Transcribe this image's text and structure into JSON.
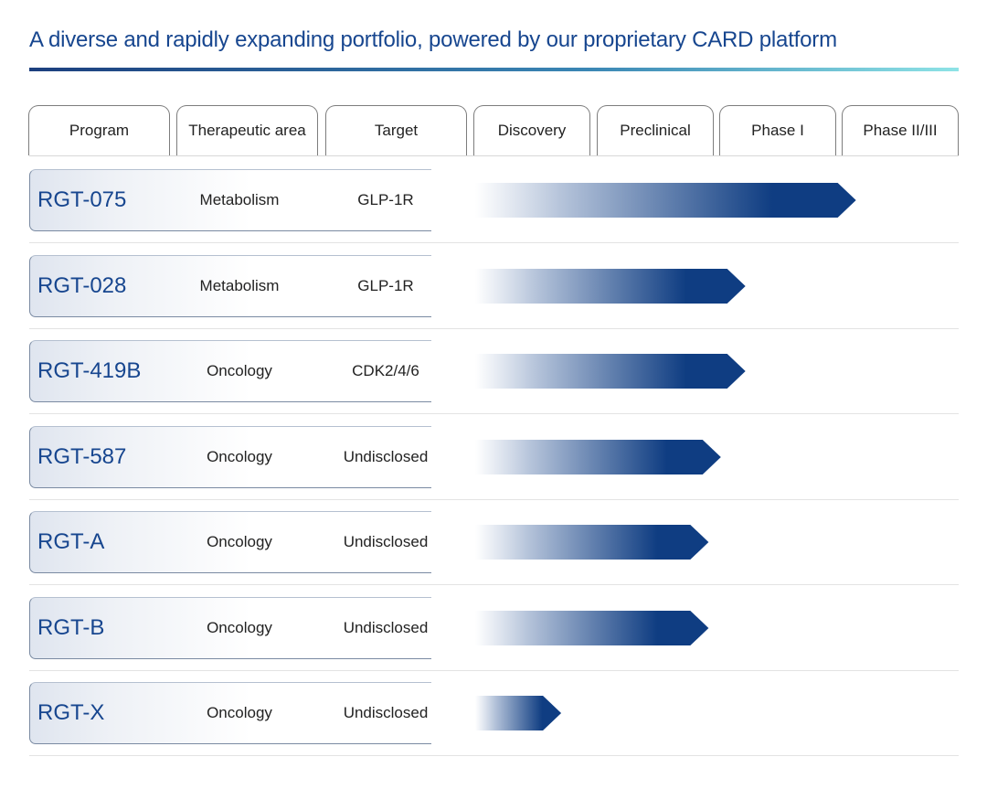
{
  "title": "A diverse and rapidly expanding portfolio, powered by our proprietary CARD platform",
  "columns": {
    "program": "Program",
    "therapeutic_area": "Therapeutic area",
    "target": "Target"
  },
  "colors": {
    "title": "#17468f",
    "bar_start": "#ffffff",
    "bar_end": "#0f3d82"
  },
  "chart_data": {
    "type": "bar",
    "orientation": "horizontal",
    "stages": [
      "Discovery",
      "Preclinical",
      "Phase I",
      "Phase II/III"
    ],
    "value_unit": "development stages completed",
    "xlim": [
      0,
      4
    ],
    "rows": [
      {
        "program": "RGT-075",
        "therapeutic_area": "Metabolism",
        "target": "GLP-1R",
        "progress": 3.1
      },
      {
        "program": "RGT-028",
        "therapeutic_area": "Metabolism",
        "target": "GLP-1R",
        "progress": 2.2
      },
      {
        "program": "RGT-419B",
        "therapeutic_area": "Oncology",
        "target": "CDK2/4/6",
        "progress": 2.2
      },
      {
        "program": "RGT-587",
        "therapeutic_area": "Oncology",
        "target": "Undisclosed",
        "progress": 2.0
      },
      {
        "program": "RGT-A",
        "therapeutic_area": "Oncology",
        "target": "Undisclosed",
        "progress": 1.9
      },
      {
        "program": "RGT-B",
        "therapeutic_area": "Oncology",
        "target": "Undisclosed",
        "progress": 1.9
      },
      {
        "program": "RGT-X",
        "therapeutic_area": "Oncology",
        "target": "Undisclosed",
        "progress": 0.7
      }
    ]
  }
}
